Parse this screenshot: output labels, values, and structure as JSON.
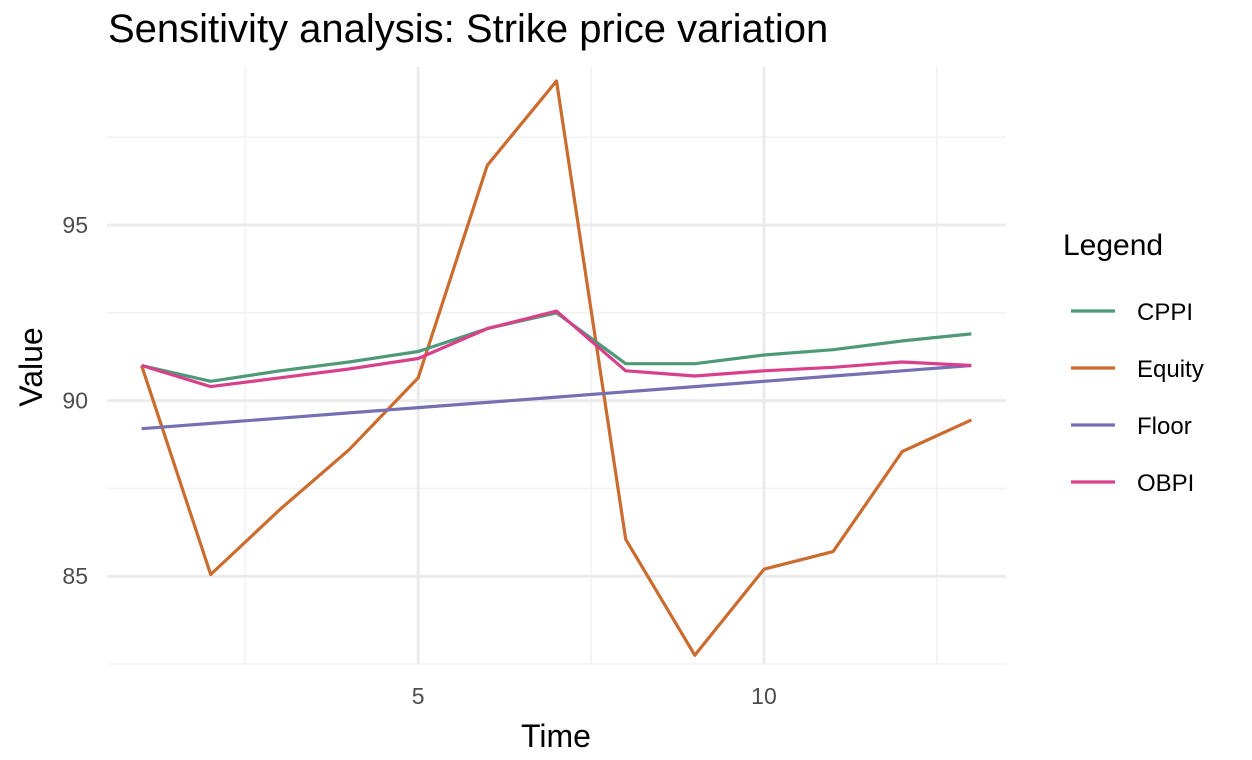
{
  "chart_data": {
    "type": "line",
    "title": "Sensitivity analysis: Strike price variation",
    "xlabel": "Time",
    "ylabel": "Value",
    "xlim": [
      0.5,
      13.5
    ],
    "ylim": [
      82.5,
      99.5
    ],
    "x_major_ticks": [
      5,
      10
    ],
    "x_minor_ticks": [
      2.5,
      7.5,
      12.5
    ],
    "y_major_ticks": [
      85,
      90,
      95
    ],
    "y_minor_ticks": [
      82.5,
      87.5,
      92.5,
      97.5
    ],
    "grid": true,
    "legend": {
      "title": "Legend",
      "position": "right"
    },
    "x": [
      1,
      2,
      3,
      4,
      5,
      6,
      7,
      8,
      9,
      10,
      11,
      12,
      13
    ],
    "series": [
      {
        "name": "CPPI",
        "color": "#4e9a78",
        "values": [
          91.0,
          90.55,
          90.85,
          91.1,
          91.4,
          92.05,
          92.5,
          91.05,
          91.05,
          91.3,
          91.45,
          91.7,
          91.9
        ]
      },
      {
        "name": "Equity",
        "color": "#cc6b2e",
        "values": [
          91.0,
          85.05,
          86.9,
          88.6,
          90.65,
          96.7,
          99.1,
          86.05,
          82.75,
          85.2,
          85.7,
          88.55,
          89.45
        ]
      },
      {
        "name": "Floor",
        "color": "#7570b3",
        "values": [
          89.2,
          89.35,
          89.5,
          89.65,
          89.8,
          89.95,
          90.1,
          90.25,
          90.4,
          90.55,
          90.7,
          90.85,
          91.0
        ]
      },
      {
        "name": "OBPI",
        "color": "#d9408c",
        "values": [
          91.0,
          90.4,
          90.65,
          90.9,
          91.2,
          92.05,
          92.55,
          90.85,
          90.7,
          90.85,
          90.95,
          91.1,
          91.0
        ]
      }
    ]
  }
}
